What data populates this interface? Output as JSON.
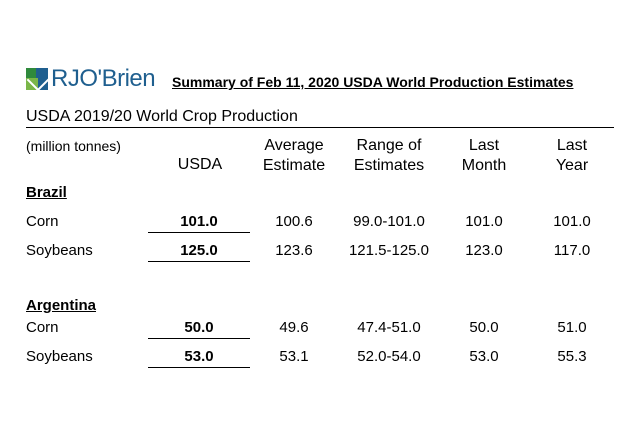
{
  "logo": {
    "brand_text": "RJO'Brien"
  },
  "summary_title": "Summary of Feb 11, 2020 USDA World Production Estimates",
  "section_title": "USDA 2019/20 World Crop Production",
  "units": "(million tonnes)",
  "columns": {
    "usda": "USDA",
    "average_line1": "Average",
    "average_line2": "Estimate",
    "range_line1": "Range of",
    "range_line2": "Estimates",
    "last_month_line1": "Last",
    "last_month_line2": "Month",
    "last_year_line1": "Last",
    "last_year_line2": "Year"
  },
  "countries": [
    {
      "name": "Brazil",
      "rows": [
        {
          "crop": "Corn",
          "usda": "101.0",
          "average": "100.6",
          "range": "99.0-101.0",
          "last_month": "101.0",
          "last_year": "101.0"
        },
        {
          "crop": "Soybeans",
          "usda": "125.0",
          "average": "123.6",
          "range": "121.5-125.0",
          "last_month": "123.0",
          "last_year": "117.0"
        }
      ]
    },
    {
      "name": "Argentina",
      "rows": [
        {
          "crop": "Corn",
          "usda": "50.0",
          "average": "49.6",
          "range": "47.4-51.0",
          "last_month": "50.0",
          "last_year": "51.0"
        },
        {
          "crop": "Soybeans",
          "usda": "53.0",
          "average": "53.1",
          "range": "52.0-54.0",
          "last_month": "53.0",
          "last_year": "55.3"
        }
      ]
    }
  ]
}
